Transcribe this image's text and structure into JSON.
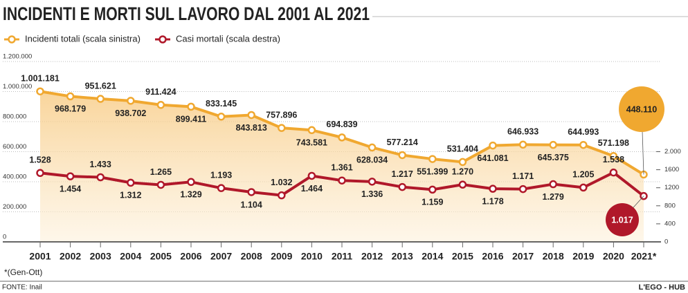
{
  "chart_data": {
    "type": "line",
    "title": "INCIDENTI E MORTI SUL LAVORO DAL 2001 AL 2021",
    "categories": [
      "2001",
      "2002",
      "2003",
      "2004",
      "2005",
      "2006",
      "2007",
      "2008",
      "2009",
      "2010",
      "2011",
      "2012",
      "2013",
      "2014",
      "2015",
      "2016",
      "2017",
      "2018",
      "2019",
      "2020",
      "2021*"
    ],
    "series": [
      {
        "name": "Incidenti totali  (scala sinistra)",
        "color": "#f0a830",
        "axis": "y",
        "values": [
          1001181,
          968179,
          951621,
          938702,
          911424,
          899411,
          833145,
          843813,
          757896,
          743581,
          694839,
          628034,
          577214,
          551399,
          531404,
          641081,
          646933,
          645375,
          644993,
          571198,
          448110
        ],
        "value_labels": [
          "1.001.181",
          "968.179",
          "951.621",
          "938.702",
          "911.424",
          "899.411",
          "833.145",
          "843.813",
          "757.896",
          "743.581",
          "694.839",
          "628.034",
          "577.214",
          "551.399",
          "531.404",
          "641.081",
          "646.933",
          "645.375",
          "644.993",
          "571.198",
          "448.110"
        ]
      },
      {
        "name": "Casi mortali (scala destra)",
        "color": "#b0182a",
        "axis": "y2",
        "values": [
          1528,
          1454,
          1433,
          1312,
          1265,
          1329,
          1193,
          1104,
          1032,
          1464,
          1361,
          1336,
          1217,
          1159,
          1270,
          1178,
          1171,
          1279,
          1205,
          1538,
          1017
        ],
        "value_labels": [
          "1.528",
          "1.454",
          "1.433",
          "1.312",
          "1.265",
          "1.329",
          "1.193",
          "1.104",
          "1.032",
          "1.464",
          "1.361",
          "1.336",
          "1.217",
          "1.159",
          "1.270",
          "1.178",
          "1.171",
          "1.279",
          "1.205",
          "1.538",
          "1.017"
        ]
      }
    ],
    "ylim": [
      0,
      1200000
    ],
    "yticks": [
      0,
      {
        "value": 200000,
        "label": "200.000"
      },
      {
        "value": 400000,
        "label": "400.000"
      },
      {
        "value": 600000,
        "label": "600.000"
      },
      {
        "value": 800000,
        "label": "800.000"
      },
      {
        "value": 1000000,
        "label": "1.000.000"
      },
      {
        "value": 1200000,
        "label": "1.200.000"
      }
    ],
    "y2lim": [
      0,
      4000
    ],
    "y2ticks": [
      0,
      400,
      800,
      1200,
      1600,
      {
        "value": 2000,
        "label": "2.000"
      }
    ],
    "grid": true,
    "note": "*(Gen-Ott)",
    "source": "FONTE: Inail",
    "credit": "L'EGO - HUB"
  }
}
